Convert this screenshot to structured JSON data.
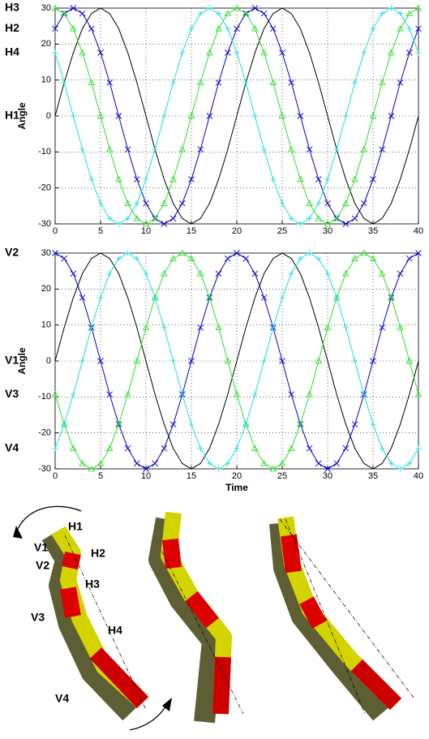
{
  "chart_data": [
    {
      "type": "line",
      "ylabel": "Angle",
      "x": [
        0,
        1,
        2,
        3,
        4,
        5,
        6,
        7,
        8,
        9,
        10,
        11,
        12,
        13,
        14,
        15,
        16,
        17,
        18,
        19,
        20,
        21,
        22,
        23,
        24,
        25,
        26,
        27,
        28,
        29,
        30,
        31,
        32,
        33,
        34,
        35,
        36,
        37,
        38,
        39,
        40
      ],
      "xlim": [
        0,
        40
      ],
      "ylim": [
        -30,
        30
      ],
      "xticks": [
        0,
        5,
        10,
        15,
        20,
        25,
        30,
        35,
        40
      ],
      "yticks": [
        -30,
        -20,
        -10,
        0,
        10,
        20,
        30
      ],
      "grid": true,
      "series": [
        {
          "name": "H1",
          "color": "#000000",
          "marker": "none",
          "values": [
            0,
            9.3,
            17.6,
            24.3,
            28.5,
            30,
            28.5,
            24.3,
            17.6,
            9.3,
            0,
            -9.3,
            -17.6,
            -24.3,
            -28.5,
            -30,
            -28.5,
            -24.3,
            -17.6,
            -9.3,
            0,
            9.3,
            17.6,
            24.3,
            28.5,
            30,
            28.5,
            24.3,
            17.6,
            9.3,
            0,
            -9.3,
            -17.6,
            -24.3,
            -28.5,
            -30,
            -28.5,
            -24.3,
            -17.6,
            -9.3,
            0
          ]
        },
        {
          "name": "H2",
          "color": "#0000cc",
          "marker": "x",
          "values": [
            24.3,
            28.5,
            30,
            28.5,
            24.3,
            17.6,
            9.3,
            0,
            -9.3,
            -17.6,
            -24.3,
            -28.5,
            -30,
            -28.5,
            -24.3,
            -17.6,
            -9.3,
            0,
            9.3,
            17.6,
            24.3,
            28.5,
            30,
            28.5,
            24.3,
            17.6,
            9.3,
            0,
            -9.3,
            -17.6,
            -24.3,
            -28.5,
            -30,
            -28.5,
            -24.3,
            -17.6,
            -9.3,
            0,
            9.3,
            17.6,
            24.3
          ]
        },
        {
          "name": "H3",
          "color": "#33dd33",
          "marker": "triangle",
          "values": [
            30,
            28.5,
            24.3,
            17.6,
            9.3,
            0,
            -9.3,
            -17.6,
            -24.3,
            -28.5,
            -30,
            -28.5,
            -24.3,
            -17.6,
            -9.3,
            0,
            9.3,
            17.6,
            24.3,
            28.5,
            30,
            28.5,
            24.3,
            17.6,
            9.3,
            0,
            -9.3,
            -17.6,
            -24.3,
            -28.5,
            -30,
            -28.5,
            -24.3,
            -17.6,
            -9.3,
            0,
            9.3,
            17.6,
            24.3,
            28.5,
            30
          ]
        },
        {
          "name": "H4",
          "color": "#22dddd",
          "marker": "plus",
          "values": [
            17.6,
            9.3,
            0,
            -9.3,
            -17.6,
            -24.3,
            -28.5,
            -30,
            -28.5,
            -24.3,
            -17.6,
            -9.3,
            0,
            9.3,
            17.6,
            24.3,
            28.5,
            30,
            28.5,
            24.3,
            17.6,
            9.3,
            0,
            -9.3,
            -17.6,
            -24.3,
            -28.5,
            -30,
            -28.5,
            -24.3,
            -17.6,
            -9.3,
            0,
            9.3,
            17.6,
            24.3,
            28.5,
            30,
            28.5,
            24.3,
            17.6
          ]
        }
      ]
    },
    {
      "type": "line",
      "ylabel": "Angle",
      "xlabel": "Time",
      "x": [
        0,
        1,
        2,
        3,
        4,
        5,
        6,
        7,
        8,
        9,
        10,
        11,
        12,
        13,
        14,
        15,
        16,
        17,
        18,
        19,
        20,
        21,
        22,
        23,
        24,
        25,
        26,
        27,
        28,
        29,
        30,
        31,
        32,
        33,
        34,
        35,
        36,
        37,
        38,
        39,
        40
      ],
      "xlim": [
        0,
        40
      ],
      "ylim": [
        -30,
        30
      ],
      "xticks": [
        0,
        5,
        10,
        15,
        20,
        25,
        30,
        35,
        40
      ],
      "yticks": [
        -30,
        -20,
        -10,
        0,
        10,
        20,
        30
      ],
      "grid": true,
      "series": [
        {
          "name": "V1",
          "color": "#000000",
          "marker": "none",
          "values": [
            0,
            9.3,
            17.6,
            24.3,
            28.5,
            30,
            28.5,
            24.3,
            17.6,
            9.3,
            0,
            -9.3,
            -17.6,
            -24.3,
            -28.5,
            -30,
            -28.5,
            -24.3,
            -17.6,
            -9.3,
            0,
            9.3,
            17.6,
            24.3,
            28.5,
            30,
            28.5,
            24.3,
            17.6,
            9.3,
            0,
            -9.3,
            -17.6,
            -24.3,
            -28.5,
            -30,
            -28.5,
            -24.3,
            -17.6,
            -9.3,
            0
          ]
        },
        {
          "name": "V2",
          "color": "#0000cc",
          "marker": "x",
          "values": [
            30,
            28.5,
            24.3,
            17.6,
            9.3,
            0,
            -9.3,
            -17.6,
            -24.3,
            -28.5,
            -30,
            -28.5,
            -24.3,
            -17.6,
            -9.3,
            0,
            9.3,
            17.6,
            24.3,
            28.5,
            30,
            28.5,
            24.3,
            17.6,
            9.3,
            0,
            -9.3,
            -17.6,
            -24.3,
            -28.5,
            -30,
            -28.5,
            -24.3,
            -17.6,
            -9.3,
            0,
            9.3,
            17.6,
            24.3,
            28.5,
            30
          ]
        },
        {
          "name": "V3",
          "color": "#33dd33",
          "marker": "triangle",
          "values": [
            -9.3,
            -17.6,
            -24.3,
            -28.5,
            -30,
            -28.5,
            -24.3,
            -17.6,
            -9.3,
            0,
            9.3,
            17.6,
            24.3,
            28.5,
            30,
            28.5,
            24.3,
            17.6,
            9.3,
            0,
            -9.3,
            -17.6,
            -24.3,
            -28.5,
            -30,
            -28.5,
            -24.3,
            -17.6,
            -9.3,
            0,
            9.3,
            17.6,
            24.3,
            28.5,
            30,
            28.5,
            24.3,
            17.6,
            9.3,
            0,
            -9.3
          ]
        },
        {
          "name": "V4",
          "color": "#22dddd",
          "marker": "plus",
          "values": [
            -24.3,
            -17.6,
            -9.3,
            0,
            9.3,
            17.6,
            24.3,
            28.5,
            30,
            28.5,
            24.3,
            17.6,
            9.3,
            0,
            -9.3,
            -17.6,
            -24.3,
            -28.5,
            -30,
            -28.5,
            -24.3,
            -17.6,
            -9.3,
            0,
            9.3,
            17.6,
            24.3,
            28.5,
            30,
            28.5,
            24.3,
            17.6,
            9.3,
            0,
            -9.3,
            -17.6,
            -24.3,
            -28.5,
            -30,
            -28.5,
            -24.3
          ]
        }
      ]
    }
  ],
  "render_labels": [
    "H1",
    "V1",
    "H2",
    "V2",
    "H3",
    "V3",
    "H4",
    "V4"
  ]
}
